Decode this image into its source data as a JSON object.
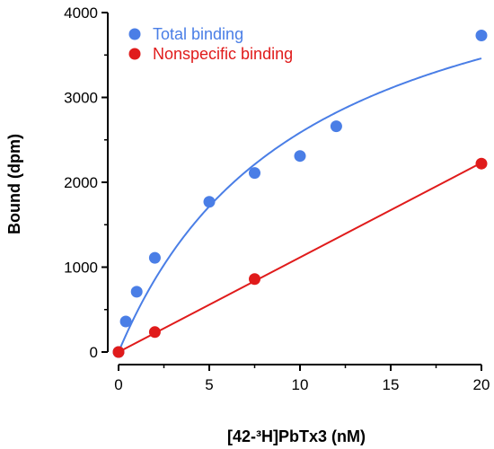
{
  "chart_data": {
    "type": "scatter",
    "xlabel": "[42-³H]PbTx3 (nM)",
    "ylabel": "Bound (dpm)",
    "xlim": [
      0,
      20
    ],
    "ylim": [
      0,
      4000
    ],
    "xticks": [
      0,
      5,
      10,
      15,
      20
    ],
    "yticks": [
      0,
      1000,
      2000,
      3000,
      4000
    ],
    "grid": false,
    "legend_position": "top-left",
    "series": [
      {
        "name": "Total binding",
        "color": "#4a7ee6",
        "x": [
          0.0,
          0.4,
          1.0,
          2.0,
          5.0,
          7.5,
          10.0,
          12.0,
          20.0
        ],
        "y": [
          0,
          360,
          710,
          1110,
          1770,
          2110,
          2310,
          2660,
          3730
        ],
        "fit": "curve"
      },
      {
        "name": "Nonspecific binding",
        "color": "#e01b1b",
        "x": [
          0.0,
          2.0,
          7.5,
          20.0
        ],
        "y": [
          0,
          235,
          860,
          2220
        ],
        "fit": "line"
      }
    ]
  }
}
